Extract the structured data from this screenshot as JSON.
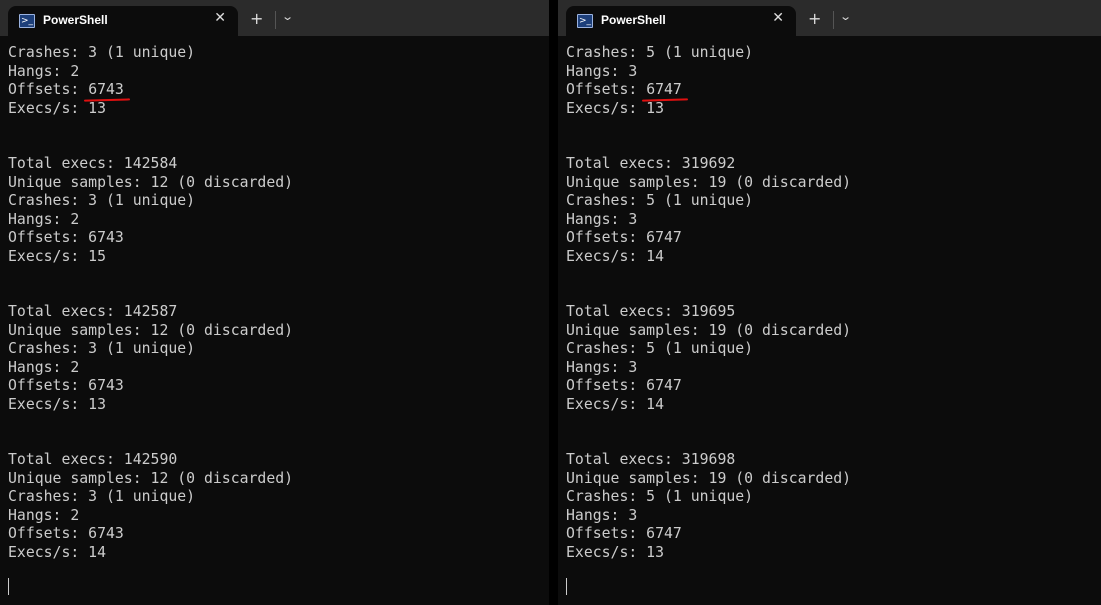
{
  "left": {
    "tab_title": "PowerShell",
    "first": {
      "crashes": "Crashes: 3 (1 unique)",
      "hangs": "Hangs: 2",
      "offsets_label": "Offsets: ",
      "offsets_value": "6743",
      "execs": "Execs/s: 13"
    },
    "blocks": [
      {
        "total": "Total execs: 142584",
        "unique": "Unique samples: 12 (0 discarded)",
        "crashes": "Crashes: 3 (1 unique)",
        "hangs": "Hangs: 2",
        "offsets": "Offsets: 6743",
        "execs": "Execs/s: 15"
      },
      {
        "total": "Total execs: 142587",
        "unique": "Unique samples: 12 (0 discarded)",
        "crashes": "Crashes: 3 (1 unique)",
        "hangs": "Hangs: 2",
        "offsets": "Offsets: 6743",
        "execs": "Execs/s: 13"
      },
      {
        "total": "Total execs: 142590",
        "unique": "Unique samples: 12 (0 discarded)",
        "crashes": "Crashes: 3 (1 unique)",
        "hangs": "Hangs: 2",
        "offsets": "Offsets: 6743",
        "execs": "Execs/s: 14"
      }
    ]
  },
  "right": {
    "tab_title": "PowerShell",
    "first": {
      "crashes": "Crashes: 5 (1 unique)",
      "hangs": "Hangs: 3",
      "offsets_label": "Offsets: ",
      "offsets_value": "6747",
      "execs": "Execs/s: 13"
    },
    "blocks": [
      {
        "total": "Total execs: 319692",
        "unique": "Unique samples: 19 (0 discarded)",
        "crashes": "Crashes: 5 (1 unique)",
        "hangs": "Hangs: 3",
        "offsets": "Offsets: 6747",
        "execs": "Execs/s: 14"
      },
      {
        "total": "Total execs: 319695",
        "unique": "Unique samples: 19 (0 discarded)",
        "crashes": "Crashes: 5 (1 unique)",
        "hangs": "Hangs: 3",
        "offsets": "Offsets: 6747",
        "execs": "Execs/s: 14"
      },
      {
        "total": "Total execs: 319698",
        "unique": "Unique samples: 19 (0 discarded)",
        "crashes": "Crashes: 5 (1 unique)",
        "hangs": "Hangs: 3",
        "offsets": "Offsets: 6747",
        "execs": "Execs/s: 13"
      }
    ]
  },
  "icons": {
    "tab": "powershell-icon",
    "close": "close-icon",
    "new_tab": "plus-icon",
    "dropdown": "chevron-down-icon"
  },
  "colors": {
    "terminal_bg": "#0c0c0c",
    "titlebar_bg": "#2b2b2b",
    "text": "#cccccc",
    "annotation": "#e01010"
  }
}
